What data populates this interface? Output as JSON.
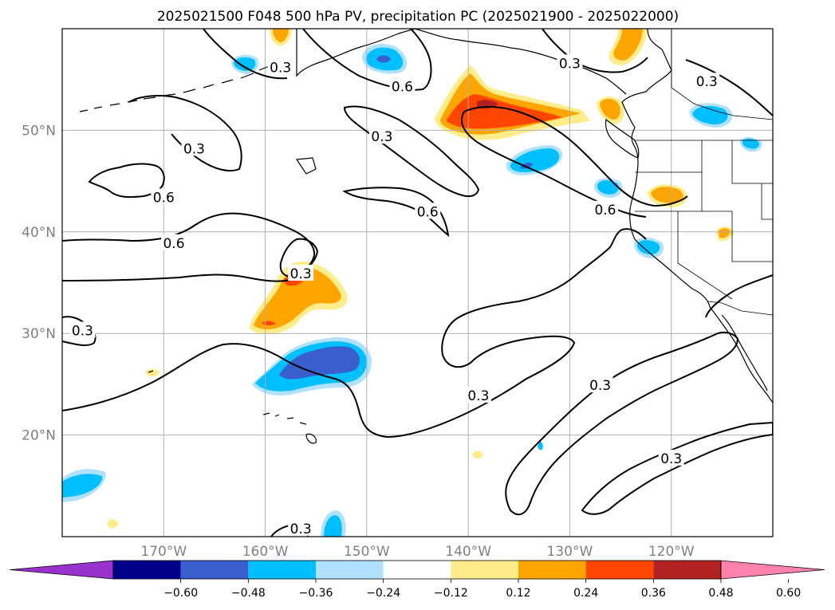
{
  "figure": {
    "title": "2025021500 F048 500 hPa PV, precipitation PC (2025021900 - 2025022000)"
  },
  "chart_data": {
    "type": "contour_map",
    "title": "2025021500 F048 500 hPa PV, precipitation PC (2025021900 - 2025022000)",
    "map_extent": {
      "lon": [
        -180,
        -110
      ],
      "lat": [
        10,
        60
      ]
    },
    "gridlines": true,
    "lon_ticks": [
      {
        "lon": -170,
        "label": "170°W"
      },
      {
        "lon": -160,
        "label": "160°W"
      },
      {
        "lon": -150,
        "label": "150°W"
      },
      {
        "lon": -140,
        "label": "140°W"
      },
      {
        "lon": -130,
        "label": "130°W"
      },
      {
        "lon": -120,
        "label": "120°W"
      }
    ],
    "lat_ticks": [
      {
        "lat": 50,
        "label": "50°N"
      },
      {
        "lat": 40,
        "label": "40°N"
      },
      {
        "lat": 30,
        "label": "30°N"
      },
      {
        "lat": 20,
        "label": "20°N"
      }
    ],
    "pv_contour_labels": [
      {
        "text": "0.3",
        "lon": -158.5,
        "lat": 56.2
      },
      {
        "text": "0.6",
        "lon": -146.5,
        "lat": 54.3
      },
      {
        "text": "0.3",
        "lon": -148.5,
        "lat": 49.4
      },
      {
        "text": "0.3",
        "lon": -130.0,
        "lat": 56.6
      },
      {
        "text": "0.3",
        "lon": -116.5,
        "lat": 54.8
      },
      {
        "text": "0.3",
        "lon": -167.0,
        "lat": 48.2
      },
      {
        "text": "0.6",
        "lon": -170.0,
        "lat": 43.4
      },
      {
        "text": "0.6",
        "lon": -144.0,
        "lat": 42.0
      },
      {
        "text": "0.6",
        "lon": -126.5,
        "lat": 42.2
      },
      {
        "text": "0.6",
        "lon": -169.0,
        "lat": 38.9
      },
      {
        "text": "0.3",
        "lon": -156.5,
        "lat": 35.9
      },
      {
        "text": "0.3",
        "lon": -178.0,
        "lat": 30.3
      },
      {
        "text": "0.3",
        "lon": -139.0,
        "lat": 23.9
      },
      {
        "text": "0.3",
        "lon": -127.0,
        "lat": 24.9
      },
      {
        "text": "0.3",
        "lon": -120.0,
        "lat": 17.7
      },
      {
        "text": "0.3",
        "lon": -156.5,
        "lat": 10.8
      }
    ],
    "precip_pc_colorbar": {
      "levels": [
        -0.72,
        -0.6,
        -0.48,
        -0.36,
        -0.24,
        -0.12,
        0.12,
        0.24,
        0.36,
        0.48,
        0.6,
        0.72
      ],
      "colors": [
        "#9932cc",
        "#00008b",
        "#3a5fcd",
        "#00bfff",
        "#b0e2ff",
        "#ffffff",
        "#ffec8b",
        "#ffa500",
        "#ff4500",
        "#b22222",
        "#ff82ab"
      ],
      "extend": "both",
      "tick_labels": [
        "−0.60",
        "−0.48",
        "−0.36",
        "−0.24",
        "−0.12",
        "0.12",
        "0.24",
        "0.36",
        "0.48",
        "0.60"
      ]
    },
    "precip_pc_areas": [
      {
        "region": "Gulf of Alaska / Pacific Northwest",
        "sign": "positive",
        "max_level": 0.48
      },
      {
        "region": "Central Pacific near 35N 155W",
        "sign": "positive",
        "max_level": 0.36
      },
      {
        "region": "Near Hawaii 27N 152W",
        "sign": "negative",
        "max_level": -0.36
      },
      {
        "region": "Offshore 47N 135W",
        "sign": "negative",
        "max_level": -0.36
      },
      {
        "region": "Near 55N 150W",
        "sign": "negative",
        "max_level": -0.36
      }
    ]
  }
}
